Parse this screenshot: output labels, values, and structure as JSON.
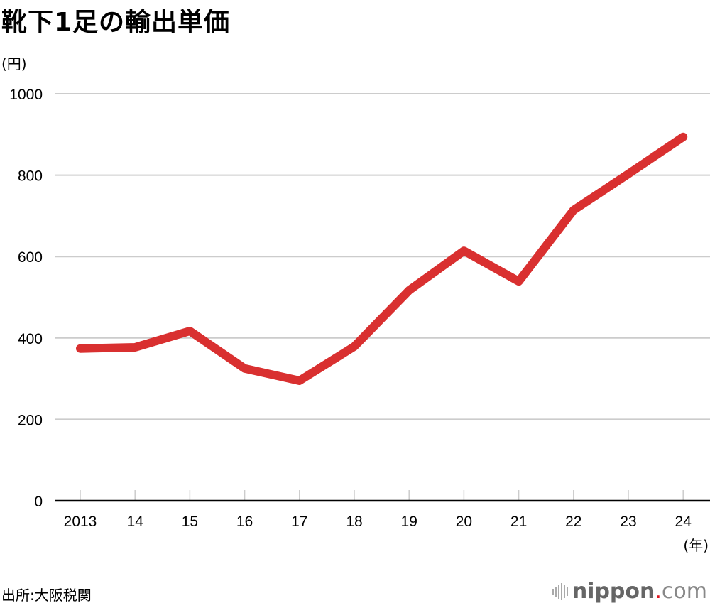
{
  "title": "靴下1足の輸出単価",
  "y_unit": "(円)",
  "x_unit": "(年)",
  "source": "出所:大阪税関",
  "logo": {
    "name": "nippon",
    "dot": ".",
    "tld": "com"
  },
  "colors": {
    "line": "#d93030",
    "grid": "#cccccc",
    "axis": "#000000",
    "logo_dot": "#e0141e"
  },
  "chart_data": {
    "type": "line",
    "title": "靴下1足の輸出単価",
    "xlabel": "(年)",
    "ylabel": "(円)",
    "categories": [
      "2013",
      "14",
      "15",
      "16",
      "17",
      "18",
      "19",
      "20",
      "21",
      "22",
      "23",
      "24"
    ],
    "series": [
      {
        "name": "輸出単価",
        "values": [
          374,
          377,
          417,
          325,
          295,
          379,
          517,
          614,
          539,
          714,
          803,
          894
        ]
      }
    ],
    "yticks": [
      "0",
      "200",
      "400",
      "600",
      "800",
      "1000"
    ],
    "ylim": [
      0,
      1000
    ],
    "grid": true,
    "legend": "none"
  }
}
